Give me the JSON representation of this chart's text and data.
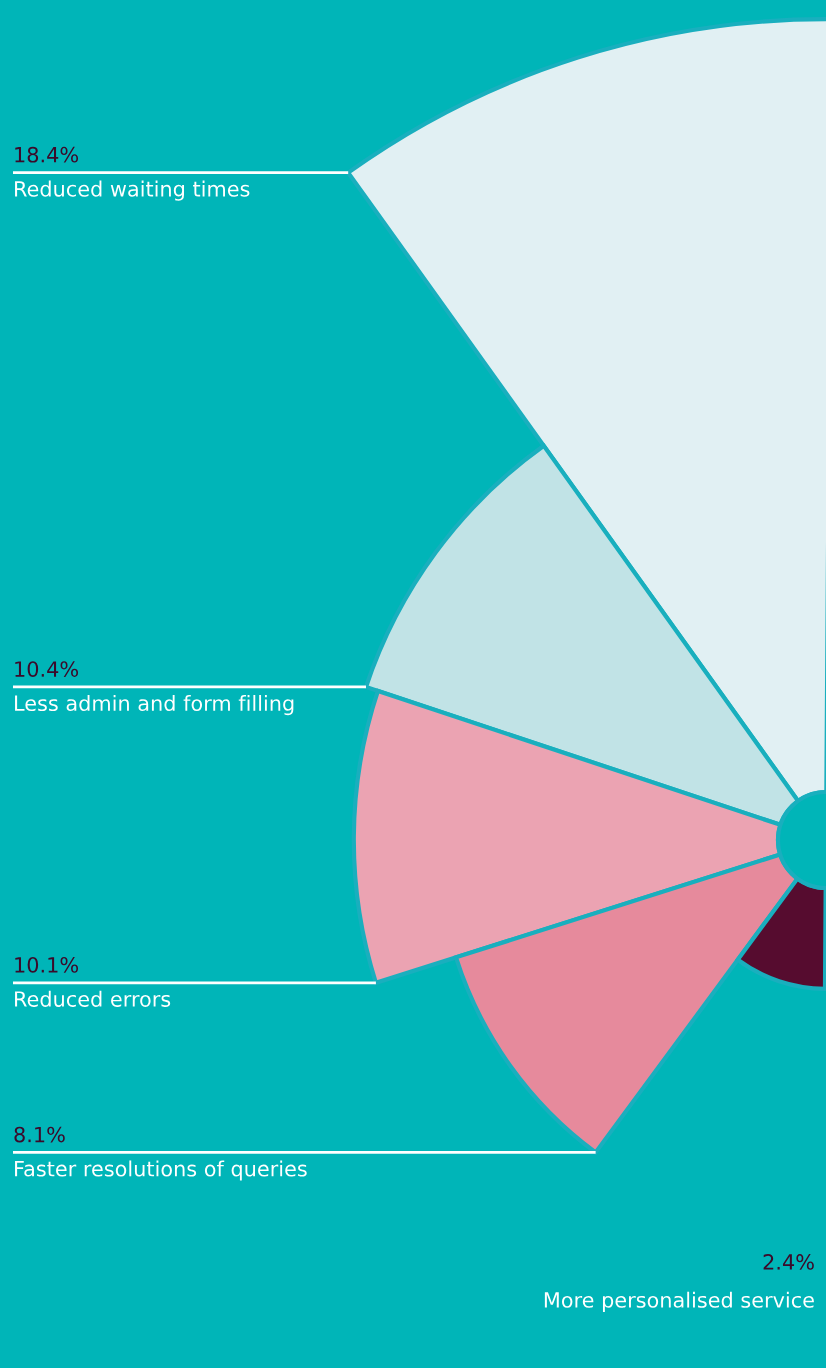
{
  "chart_data": {
    "type": "other",
    "categories": [
      "Reduced waiting times",
      "Less admin and form filling",
      "Reduced errors",
      "Faster resolutions of queries",
      "More personalised service"
    ],
    "values": [
      18.4,
      10.4,
      10.1,
      8.1,
      2.4
    ],
    "value_labels": [
      "18.4%",
      "10.4%",
      "10.1%",
      "8.1%",
      "2.4%"
    ],
    "colors": [
      "#e1f0f3",
      "#c1e3e6",
      "#eba3b2",
      "#e68a9c",
      "#560c2f"
    ]
  }
}
